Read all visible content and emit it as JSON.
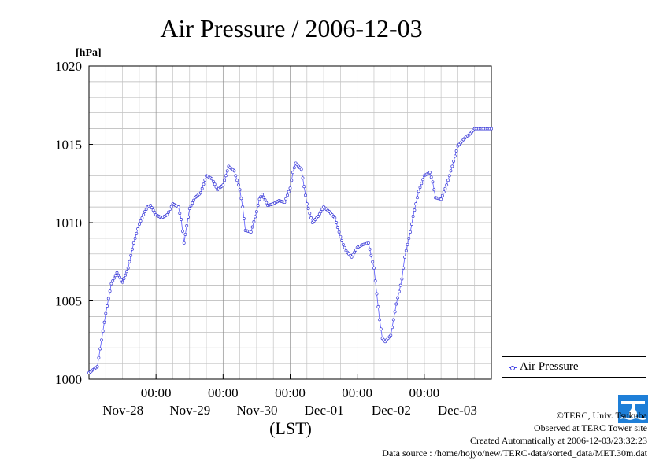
{
  "chart_data": {
    "type": "line",
    "title": "Air Pressure / 2006-12-03",
    "ylabel": "[hPa]",
    "xlabel": "(LST)",
    "ylim": [
      1000,
      1020
    ],
    "yticks": [
      "1000",
      "1005",
      "1010",
      "1015",
      "1020"
    ],
    "ytick_values": [
      1000,
      1005,
      1010,
      1015,
      1020
    ],
    "xlim_hours": [
      0,
      144
    ],
    "xticks": [
      {
        "hour": 24,
        "time": "00:00",
        "date": "Nov-28"
      },
      {
        "hour": 48,
        "time": "00:00",
        "date": "Nov-29"
      },
      {
        "hour": 72,
        "time": "00:00",
        "date": "Nov-30"
      },
      {
        "hour": 96,
        "time": "00:00",
        "date": "Dec-01"
      },
      {
        "hour": 120,
        "time": "00:00",
        "date": "Dec-02"
      }
    ],
    "extra_date_label": "Dec-03",
    "grid": true,
    "legend_position": "right",
    "series": [
      {
        "name": "Air Pressure",
        "color": "#4b4bff",
        "x": [
          0,
          3,
          6,
          8,
          10,
          12,
          14,
          16,
          18,
          20,
          21,
          22,
          24,
          26,
          28,
          30,
          32,
          33,
          34,
          36,
          38,
          40,
          42,
          44,
          46,
          48,
          50,
          52,
          54,
          55,
          56,
          58,
          60,
          61,
          62,
          64,
          66,
          68,
          70,
          72,
          73,
          74,
          76,
          78,
          80,
          82,
          84,
          86,
          88,
          90,
          91,
          92,
          94,
          96,
          98,
          100,
          102,
          104,
          105,
          106,
          108,
          110,
          112,
          113,
          114,
          115,
          116,
          117,
          118,
          120,
          122,
          123,
          124,
          126,
          128,
          130,
          132,
          134,
          135,
          136,
          137,
          138,
          140,
          141,
          142,
          144
        ],
        "values": [
          1000.4,
          1000.8,
          1004.2,
          1006.1,
          1006.8,
          1006.2,
          1007.1,
          1008.7,
          1009.9,
          1010.7,
          1011.0,
          1011.1,
          1010.5,
          1010.3,
          1010.5,
          1011.2,
          1011.0,
          1010.2,
          1008.7,
          1010.9,
          1011.6,
          1011.9,
          1013.0,
          1012.8,
          1012.1,
          1012.4,
          1013.6,
          1013.3,
          1012.1,
          1011.0,
          1009.5,
          1009.4,
          1010.7,
          1011.5,
          1011.8,
          1011.1,
          1011.2,
          1011.4,
          1011.3,
          1012.2,
          1013.2,
          1013.8,
          1013.4,
          1011.2,
          1010.0,
          1010.4,
          1011.0,
          1010.7,
          1010.3,
          1009.1,
          1008.6,
          1008.2,
          1007.8,
          1008.4,
          1008.6,
          1008.7,
          1007.1,
          1003.8,
          1002.6,
          1002.4,
          1002.8,
          1004.8,
          1006.4,
          1007.8,
          1008.6,
          1009.4,
          1010.4,
          1011.2,
          1012.0,
          1013.0,
          1013.2,
          1012.6,
          1011.6,
          1011.5,
          1012.4,
          1013.6,
          1014.9,
          1015.3,
          1015.5,
          1015.6,
          1015.8,
          1016.0,
          1016.0,
          1016.0,
          1016.0,
          1016.0
        ]
      }
    ]
  },
  "legend": {
    "label": "Air Pressure"
  },
  "credits": {
    "line1": "©TERC, Univ. Tsukuba",
    "line2": "Observed at TERC Tower site",
    "line3": "Created Automatically at 2006-12-03/23:32:23",
    "line4": "Data source : /home/hojyo/new/TERC-data/sorted_data/MET.30m.dat"
  },
  "logo": {
    "text": "TERC",
    "color": "#1e7fd8"
  }
}
